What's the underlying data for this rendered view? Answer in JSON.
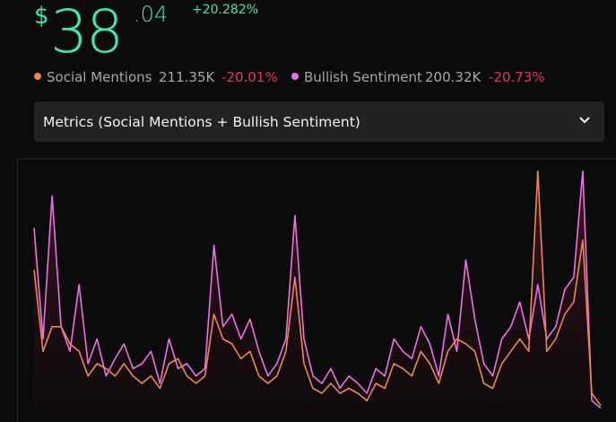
{
  "header": {
    "currency": "$",
    "integer": "38",
    "decimals": ".04",
    "change": "+20.282%"
  },
  "legend": [
    {
      "value": "211.35K",
      "change": "-20.01%"
    },
    {
      "value": "200.32K",
      "change": "-20.73%"
    }
  ],
  "dropdown": {
    "label": "Metrics (Social Mentions + Bullish Sentiment)"
  },
  "chart_data": {
    "type": "line",
    "ylim": [
      0,
      100
    ],
    "series": [
      {
        "name": "Social Mentions",
        "color": "#f0874a",
        "values": [
          58,
          25,
          35,
          35,
          28,
          25,
          15,
          20,
          18,
          15,
          20,
          15,
          12,
          15,
          10,
          20,
          22,
          15,
          12,
          15,
          40,
          30,
          28,
          22,
          25,
          15,
          12,
          15,
          25,
          55,
          20,
          10,
          8,
          12,
          8,
          10,
          8,
          5,
          12,
          10,
          20,
          18,
          15,
          25,
          20,
          12,
          25,
          30,
          28,
          25,
          12,
          10,
          20,
          25,
          30,
          25,
          98,
          25,
          30,
          40,
          45,
          70,
          8,
          3
        ]
      },
      {
        "name": "Bullish Sentiment",
        "color": "#ee6fe6",
        "values": [
          75,
          30,
          88,
          35,
          25,
          52,
          20,
          30,
          15,
          22,
          28,
          18,
          20,
          25,
          12,
          30,
          18,
          20,
          15,
          18,
          68,
          35,
          40,
          30,
          38,
          25,
          15,
          20,
          30,
          80,
          30,
          15,
          12,
          18,
          10,
          15,
          12,
          8,
          18,
          15,
          30,
          25,
          22,
          35,
          28,
          15,
          40,
          25,
          62,
          38,
          20,
          15,
          30,
          35,
          45,
          30,
          52,
          30,
          35,
          50,
          55,
          98,
          5,
          2
        ]
      }
    ]
  }
}
